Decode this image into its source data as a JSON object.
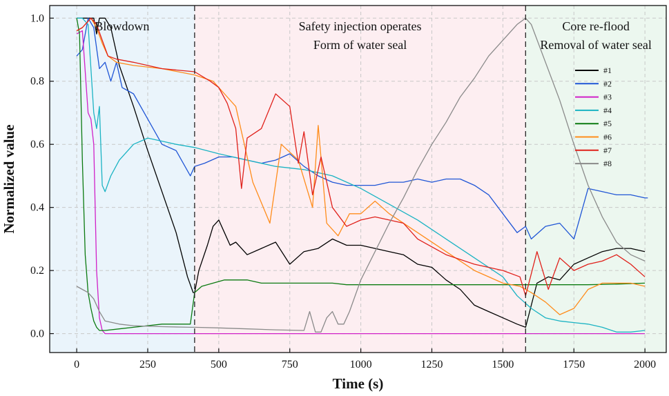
{
  "chart_data": {
    "type": "line",
    "xlabel": "Time (s)",
    "ylabel": "Normalized value",
    "xlim": [
      -95,
      2075
    ],
    "ylim": [
      -0.06,
      1.04
    ],
    "x_ticks": [
      0,
      250,
      500,
      750,
      1000,
      1250,
      1500,
      1750,
      2000
    ],
    "y_ticks": [
      0.0,
      0.2,
      0.4,
      0.6,
      0.8,
      1.0
    ],
    "y_tick_labels": [
      "0.0",
      "0.2",
      "0.4",
      "0.6",
      "0.8",
      "1.0"
    ],
    "grid": true,
    "legend_position": "top-right",
    "phases": [
      {
        "label_line1": "Blowdown",
        "label_line2": "",
        "x_start": -95,
        "x_end": 415,
        "color": "#eaf4fb"
      },
      {
        "label_line1": "Safety injection operates",
        "label_line2": "Form of water seal",
        "x_start": 415,
        "x_end": 1580,
        "color": "#fdeef1"
      },
      {
        "label_line1": "Core re-flood",
        "label_line2": "Removal of water seal",
        "x_start": 1580,
        "x_end": 2075,
        "color": "#ecf7ef"
      }
    ],
    "phase_boundaries": [
      415,
      1580
    ],
    "series": [
      {
        "name": "#1",
        "color": "#000000",
        "x": [
          0,
          20,
          40,
          60,
          70,
          80,
          90,
          100,
          120,
          150,
          200,
          250,
          300,
          350,
          390,
          410,
          415,
          430,
          460,
          480,
          500,
          520,
          540,
          560,
          580,
          600,
          650,
          700,
          750,
          800,
          850,
          900,
          950,
          1000,
          1050,
          1100,
          1150,
          1200,
          1250,
          1300,
          1350,
          1400,
          1450,
          1500,
          1550,
          1580,
          1620,
          1660,
          1700,
          1750,
          1800,
          1850,
          1900,
          1950,
          2000
        ],
        "y": [
          1.0,
          1.0,
          1.0,
          1.0,
          0.95,
          1.0,
          1.0,
          1.0,
          0.97,
          0.85,
          0.72,
          0.58,
          0.45,
          0.32,
          0.18,
          0.13,
          0.13,
          0.2,
          0.28,
          0.34,
          0.36,
          0.32,
          0.28,
          0.29,
          0.27,
          0.25,
          0.27,
          0.29,
          0.22,
          0.26,
          0.27,
          0.3,
          0.28,
          0.28,
          0.27,
          0.26,
          0.25,
          0.22,
          0.21,
          0.17,
          0.14,
          0.09,
          0.07,
          0.05,
          0.03,
          0.02,
          0.16,
          0.18,
          0.17,
          0.22,
          0.24,
          0.26,
          0.27,
          0.27,
          0.26
        ]
      },
      {
        "name": "#2",
        "color": "#1f55d6",
        "x": [
          0,
          20,
          40,
          60,
          80,
          100,
          120,
          140,
          160,
          200,
          250,
          300,
          350,
          400,
          415,
          450,
          500,
          550,
          600,
          650,
          700,
          750,
          800,
          850,
          900,
          950,
          1000,
          1050,
          1100,
          1150,
          1200,
          1250,
          1300,
          1350,
          1400,
          1450,
          1500,
          1550,
          1580,
          1600,
          1650,
          1700,
          1750,
          1800,
          1850,
          1900,
          1950,
          2000,
          2010
        ],
        "y": [
          0.88,
          0.9,
          1.0,
          0.97,
          0.84,
          0.86,
          0.8,
          0.86,
          0.78,
          0.76,
          0.68,
          0.6,
          0.58,
          0.5,
          0.53,
          0.54,
          0.56,
          0.56,
          0.55,
          0.54,
          0.55,
          0.57,
          0.53,
          0.5,
          0.48,
          0.47,
          0.47,
          0.47,
          0.48,
          0.48,
          0.49,
          0.48,
          0.49,
          0.49,
          0.47,
          0.44,
          0.38,
          0.32,
          0.34,
          0.3,
          0.34,
          0.35,
          0.3,
          0.46,
          0.45,
          0.44,
          0.44,
          0.43,
          0.43
        ]
      },
      {
        "name": "#3",
        "color": "#d020c8",
        "x": [
          0,
          20,
          40,
          50,
          60,
          70,
          80,
          90,
          100,
          150,
          200,
          500,
          1000,
          1500,
          2000
        ],
        "y": [
          0.95,
          0.96,
          0.7,
          0.68,
          0.6,
          0.2,
          0.05,
          0.01,
          0.0,
          0.0,
          0.0,
          0.0,
          0.0,
          0.0,
          0.0
        ]
      },
      {
        "name": "#4",
        "color": "#1ab3c3",
        "x": [
          0,
          20,
          40,
          60,
          70,
          80,
          90,
          100,
          120,
          150,
          200,
          250,
          300,
          350,
          415,
          500,
          600,
          700,
          800,
          900,
          1000,
          1100,
          1200,
          1300,
          1400,
          1500,
          1550,
          1600,
          1650,
          1700,
          1750,
          1800,
          1850,
          1900,
          1950,
          2000
        ],
        "y": [
          1.0,
          1.0,
          0.98,
          0.7,
          0.65,
          0.72,
          0.47,
          0.45,
          0.5,
          0.55,
          0.6,
          0.62,
          0.61,
          0.6,
          0.59,
          0.57,
          0.55,
          0.53,
          0.52,
          0.5,
          0.46,
          0.41,
          0.36,
          0.3,
          0.24,
          0.18,
          0.12,
          0.08,
          0.05,
          0.04,
          0.035,
          0.03,
          0.02,
          0.005,
          0.005,
          0.01
        ]
      },
      {
        "name": "#5",
        "color": "#0b7a10",
        "x": [
          0,
          10,
          20,
          30,
          40,
          50,
          60,
          70,
          80,
          100,
          150,
          200,
          300,
          400,
          415,
          440,
          480,
          520,
          560,
          600,
          650,
          700,
          750,
          800,
          850,
          900,
          950,
          1000,
          1100,
          1200,
          1300,
          1400,
          1500,
          1600,
          1700,
          1800,
          1900,
          2000
        ],
        "y": [
          1.0,
          0.95,
          0.55,
          0.25,
          0.13,
          0.08,
          0.04,
          0.02,
          0.01,
          0.01,
          0.015,
          0.02,
          0.03,
          0.03,
          0.13,
          0.15,
          0.16,
          0.17,
          0.17,
          0.17,
          0.16,
          0.16,
          0.16,
          0.16,
          0.16,
          0.16,
          0.155,
          0.155,
          0.155,
          0.155,
          0.155,
          0.155,
          0.155,
          0.155,
          0.155,
          0.155,
          0.157,
          0.16
        ]
      },
      {
        "name": "#6",
        "color": "#ff8c1a",
        "x": [
          0,
          20,
          30,
          50,
          70,
          90,
          110,
          140,
          200,
          300,
          415,
          480,
          520,
          560,
          590,
          620,
          680,
          720,
          780,
          830,
          850,
          880,
          920,
          960,
          1000,
          1050,
          1100,
          1200,
          1300,
          1400,
          1500,
          1560,
          1600,
          1650,
          1700,
          1750,
          1800,
          1850,
          1900,
          1950,
          2000
        ],
        "y": [
          0.96,
          0.97,
          0.98,
          1.0,
          0.97,
          0.92,
          0.88,
          0.86,
          0.85,
          0.84,
          0.82,
          0.8,
          0.76,
          0.72,
          0.6,
          0.48,
          0.35,
          0.6,
          0.55,
          0.4,
          0.66,
          0.35,
          0.31,
          0.38,
          0.38,
          0.42,
          0.38,
          0.32,
          0.26,
          0.2,
          0.16,
          0.15,
          0.13,
          0.1,
          0.06,
          0.08,
          0.14,
          0.16,
          0.16,
          0.16,
          0.15
        ]
      },
      {
        "name": "#7",
        "color": "#e0201a",
        "x": [
          0,
          20,
          30,
          50,
          70,
          90,
          110,
          140,
          200,
          300,
          415,
          470,
          500,
          530,
          560,
          580,
          600,
          650,
          700,
          750,
          780,
          800,
          830,
          860,
          900,
          950,
          1000,
          1050,
          1100,
          1150,
          1200,
          1300,
          1400,
          1500,
          1560,
          1580,
          1620,
          1660,
          1700,
          1750,
          1800,
          1850,
          1900,
          1950,
          2000
        ],
        "y": [
          0.96,
          0.97,
          0.98,
          1.0,
          0.98,
          0.93,
          0.88,
          0.87,
          0.86,
          0.84,
          0.83,
          0.8,
          0.78,
          0.73,
          0.65,
          0.46,
          0.62,
          0.65,
          0.76,
          0.72,
          0.54,
          0.64,
          0.44,
          0.56,
          0.4,
          0.34,
          0.36,
          0.37,
          0.36,
          0.35,
          0.3,
          0.25,
          0.22,
          0.2,
          0.18,
          0.12,
          0.26,
          0.14,
          0.24,
          0.2,
          0.22,
          0.23,
          0.25,
          0.22,
          0.18
        ]
      },
      {
        "name": "#8",
        "color": "#8a8a8a",
        "x": [
          0,
          20,
          40,
          60,
          80,
          100,
          150,
          200,
          300,
          400,
          415,
          500,
          600,
          700,
          800,
          820,
          840,
          860,
          880,
          900,
          920,
          940,
          960,
          1000,
          1050,
          1100,
          1150,
          1200,
          1250,
          1300,
          1350,
          1400,
          1450,
          1500,
          1550,
          1580,
          1600,
          1650,
          1700,
          1750,
          1800,
          1850,
          1900,
          1950,
          2000
        ],
        "y": [
          0.15,
          0.14,
          0.13,
          0.11,
          0.07,
          0.04,
          0.03,
          0.025,
          0.022,
          0.02,
          0.02,
          0.018,
          0.015,
          0.012,
          0.01,
          0.07,
          0.005,
          0.005,
          0.05,
          0.07,
          0.03,
          0.03,
          0.07,
          0.17,
          0.26,
          0.35,
          0.43,
          0.52,
          0.6,
          0.67,
          0.75,
          0.81,
          0.88,
          0.93,
          0.98,
          1.0,
          0.98,
          0.86,
          0.74,
          0.6,
          0.47,
          0.37,
          0.29,
          0.25,
          0.23
        ]
      }
    ]
  }
}
